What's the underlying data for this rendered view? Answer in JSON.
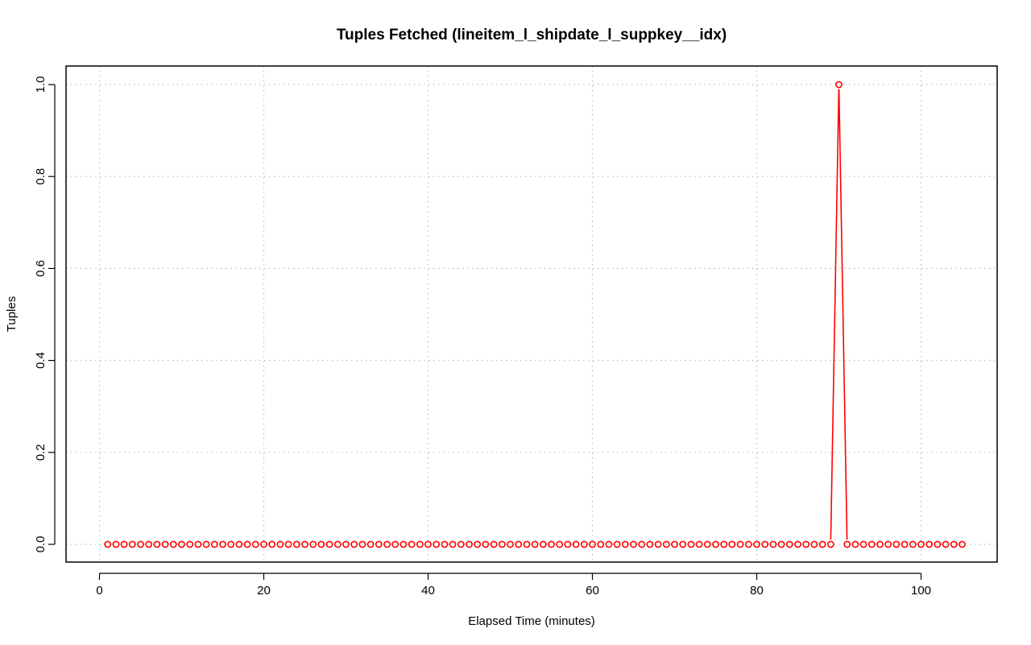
{
  "chart_data": {
    "type": "line",
    "title": "Tuples Fetched (lineitem_l_shipdate_l_suppkey__idx)",
    "xlabel": "Elapsed Time (minutes)",
    "ylabel": "Tuples",
    "xlim": [
      1,
      105
    ],
    "ylim": [
      0,
      1
    ],
    "x_ticks": [
      0,
      20,
      40,
      60,
      80,
      100
    ],
    "y_ticks": [
      0.0,
      0.2,
      0.4,
      0.6,
      0.8,
      1.0
    ],
    "x_tick_labels": [
      "0",
      "20",
      "40",
      "60",
      "80",
      "100"
    ],
    "y_tick_labels": [
      "0.0",
      "0.2",
      "0.4",
      "0.6",
      "0.8",
      "1.0"
    ],
    "grid": true,
    "colors": {
      "series": "#ff0000",
      "grid": "#bebebe",
      "axes": "#000000"
    },
    "series": [
      {
        "x_start": 1,
        "x_step": 1,
        "values": [
          0,
          0,
          0,
          0,
          0,
          0,
          0,
          0,
          0,
          0,
          0,
          0,
          0,
          0,
          0,
          0,
          0,
          0,
          0,
          0,
          0,
          0,
          0,
          0,
          0,
          0,
          0,
          0,
          0,
          0,
          0,
          0,
          0,
          0,
          0,
          0,
          0,
          0,
          0,
          0,
          0,
          0,
          0,
          0,
          0,
          0,
          0,
          0,
          0,
          0,
          0,
          0,
          0,
          0,
          0,
          0,
          0,
          0,
          0,
          0,
          0,
          0,
          0,
          0,
          0,
          0,
          0,
          0,
          0,
          0,
          0,
          0,
          0,
          0,
          0,
          0,
          0,
          0,
          0,
          0,
          0,
          0,
          0,
          0,
          0,
          0,
          0,
          0,
          0,
          1,
          0,
          0,
          0,
          0,
          0,
          0,
          0,
          0,
          0,
          0,
          0,
          0,
          0,
          0,
          0
        ]
      }
    ]
  }
}
